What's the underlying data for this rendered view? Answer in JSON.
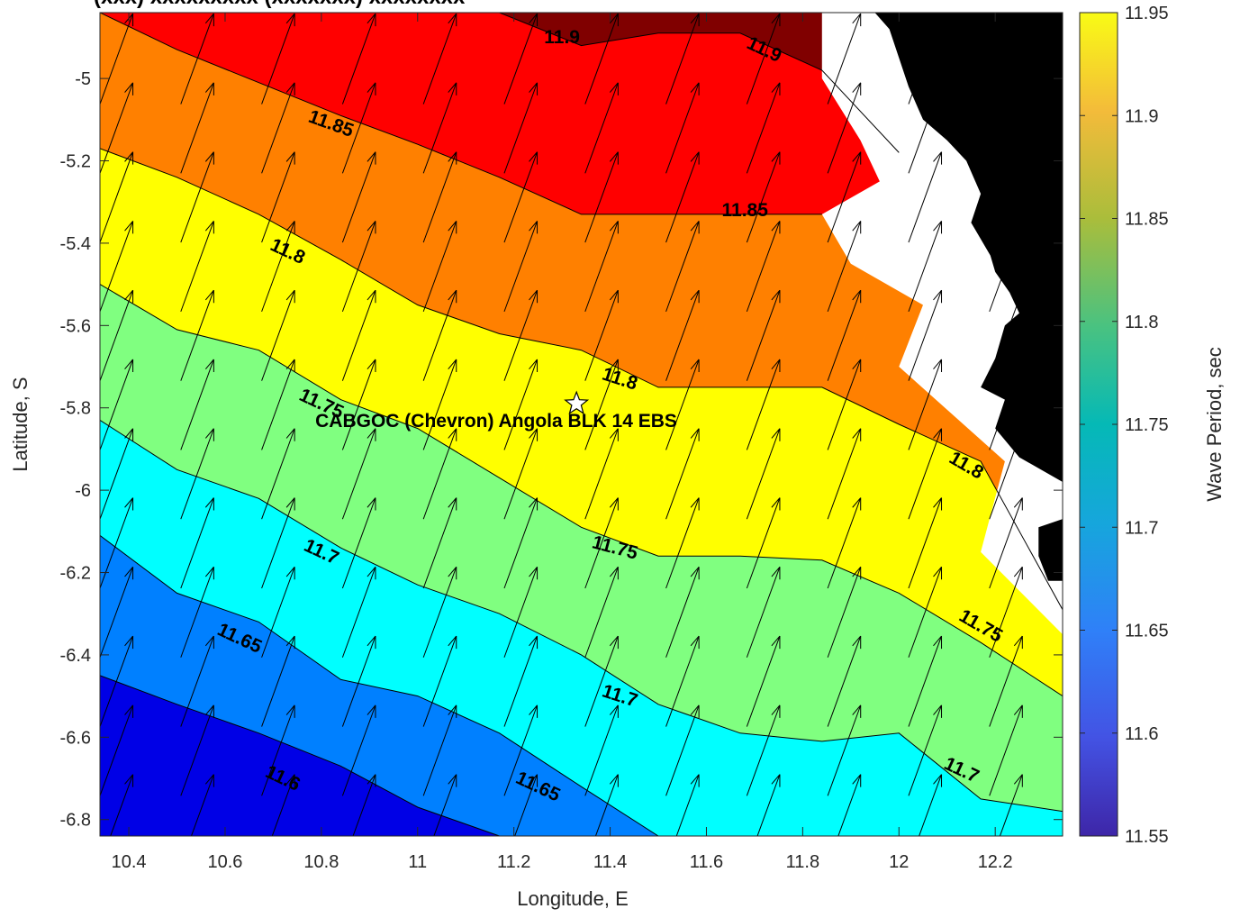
{
  "chart_data": {
    "type": "contour",
    "title": "(xxx) xxxxxxxxx (xxxxxxx) xxxxxxxx",
    "xlabel": "Longitude, E",
    "ylabel": "Latitude, S",
    "xlim": [
      10.34,
      12.34
    ],
    "ylim": [
      -6.84,
      -4.84
    ],
    "x_ticks": [
      10.4,
      10.6,
      10.8,
      11,
      11.2,
      11.4,
      11.6,
      11.8,
      12,
      12.2
    ],
    "x_tick_labels": [
      "10.4",
      "10.6",
      "10.8",
      "11",
      "11.2",
      "11.4",
      "11.6",
      "11.8",
      "12",
      "12.2"
    ],
    "y_ticks": [
      -5,
      -5.2,
      -5.4,
      -5.6,
      -5.8,
      -6,
      -6.2,
      -6.4,
      -6.6,
      -6.8
    ],
    "y_tick_labels": [
      "-5",
      "-5.2",
      "-5.4",
      "-5.6",
      "-5.8",
      "-6",
      "-6.2",
      "-6.4",
      "-6.6",
      "-6.8"
    ],
    "colorbar": {
      "label": "Wave Period, sec",
      "range": [
        11.55,
        11.95
      ],
      "ticks": [
        11.55,
        11.6,
        11.65,
        11.7,
        11.75,
        11.8,
        11.85,
        11.9,
        11.95
      ],
      "tick_labels": [
        "11.55",
        "11.6",
        "11.65",
        "11.7",
        "11.75",
        "11.8",
        "11.85",
        "11.9",
        "11.95"
      ]
    },
    "contour_levels": [
      11.6,
      11.65,
      11.7,
      11.75,
      11.8,
      11.85,
      11.9
    ],
    "band_colors": [
      "#0000e6",
      "#0080ff",
      "#00ffff",
      "#80ff80",
      "#ffff00",
      "#ff8000",
      "#ff0000",
      "#800000"
    ],
    "contour_lines": [
      {
        "level": 11.6,
        "points": [
          [
            10.34,
            -6.45
          ],
          [
            10.5,
            -6.52
          ],
          [
            10.67,
            -6.59
          ],
          [
            10.84,
            -6.67
          ],
          [
            11.0,
            -6.77
          ],
          [
            11.17,
            -6.84
          ]
        ]
      },
      {
        "level": 11.65,
        "points": [
          [
            10.34,
            -6.11
          ],
          [
            10.5,
            -6.25
          ],
          [
            10.67,
            -6.32
          ],
          [
            10.84,
            -6.46
          ],
          [
            11.0,
            -6.5
          ],
          [
            11.17,
            -6.59
          ],
          [
            11.34,
            -6.72
          ],
          [
            11.5,
            -6.84
          ]
        ]
      },
      {
        "level": 11.7,
        "points": [
          [
            10.34,
            -5.83
          ],
          [
            10.5,
            -5.95
          ],
          [
            10.67,
            -6.02
          ],
          [
            10.84,
            -6.14
          ],
          [
            11.0,
            -6.23
          ],
          [
            11.17,
            -6.3
          ],
          [
            11.34,
            -6.4
          ],
          [
            11.5,
            -6.52
          ],
          [
            11.67,
            -6.59
          ],
          [
            11.84,
            -6.61
          ],
          [
            12.0,
            -6.59
          ],
          [
            12.17,
            -6.75
          ],
          [
            12.34,
            -6.78
          ]
        ]
      },
      {
        "level": 11.75,
        "points": [
          [
            10.34,
            -5.5
          ],
          [
            10.5,
            -5.61
          ],
          [
            10.67,
            -5.66
          ],
          [
            10.84,
            -5.78
          ],
          [
            11.0,
            -5.85
          ],
          [
            11.17,
            -5.97
          ],
          [
            11.34,
            -6.09
          ],
          [
            11.5,
            -6.16
          ],
          [
            11.67,
            -6.16
          ],
          [
            11.84,
            -6.17
          ],
          [
            12.0,
            -6.25
          ],
          [
            12.17,
            -6.37
          ],
          [
            12.34,
            -6.5
          ]
        ]
      },
      {
        "level": 11.8,
        "points": [
          [
            10.34,
            -5.17
          ],
          [
            10.5,
            -5.24
          ],
          [
            10.67,
            -5.33
          ],
          [
            10.84,
            -5.44
          ],
          [
            11.0,
            -5.55
          ],
          [
            11.17,
            -5.62
          ],
          [
            11.34,
            -5.66
          ],
          [
            11.5,
            -5.75
          ],
          [
            11.67,
            -5.75
          ],
          [
            11.84,
            -5.75
          ],
          [
            12.0,
            -5.84
          ],
          [
            12.17,
            -5.93
          ],
          [
            12.34,
            -6.29
          ]
        ]
      },
      {
        "level": 11.85,
        "points": [
          [
            10.34,
            -4.84
          ],
          [
            10.5,
            -4.93
          ],
          [
            10.67,
            -5.01
          ],
          [
            10.84,
            -5.09
          ],
          [
            11.0,
            -5.16
          ],
          [
            11.17,
            -5.24
          ],
          [
            11.34,
            -5.33
          ],
          [
            11.5,
            -5.33
          ],
          [
            11.67,
            -5.33
          ],
          [
            11.84,
            -5.33
          ]
        ]
      },
      {
        "level": 11.9,
        "points": [
          [
            11.17,
            -4.84
          ],
          [
            11.34,
            -4.92
          ],
          [
            11.5,
            -4.89
          ],
          [
            11.67,
            -4.89
          ],
          [
            11.84,
            -4.98
          ],
          [
            12.0,
            -5.18
          ]
        ]
      }
    ],
    "contour_labels": [
      {
        "text": "11.6",
        "x": 10.72,
        "y": -6.7,
        "angle": 25
      },
      {
        "text": "11.65",
        "x": 10.63,
        "y": -6.36,
        "angle": 25
      },
      {
        "text": "11.65",
        "x": 11.25,
        "y": -6.72,
        "angle": 25
      },
      {
        "text": "11.7",
        "x": 10.8,
        "y": -6.15,
        "angle": 25
      },
      {
        "text": "11.7",
        "x": 11.42,
        "y": -6.5,
        "angle": 18
      },
      {
        "text": "11.7",
        "x": 12.13,
        "y": -6.68,
        "angle": 25
      },
      {
        "text": "11.75",
        "x": 10.8,
        "y": -5.79,
        "angle": 25
      },
      {
        "text": "11.75",
        "x": 11.41,
        "y": -6.14,
        "angle": 15
      },
      {
        "text": "11.75",
        "x": 12.17,
        "y": -6.33,
        "angle": 30
      },
      {
        "text": "11.8",
        "x": 10.73,
        "y": -5.42,
        "angle": 25
      },
      {
        "text": "11.8",
        "x": 11.42,
        "y": -5.73,
        "angle": 18
      },
      {
        "text": "11.8",
        "x": 12.14,
        "y": -5.94,
        "angle": 30
      },
      {
        "text": "11.85",
        "x": 10.82,
        "y": -5.11,
        "angle": 20
      },
      {
        "text": "11.85",
        "x": 11.68,
        "y": -5.32,
        "angle": 0
      },
      {
        "text": "11.9",
        "x": 11.3,
        "y": -4.9,
        "angle": 0
      },
      {
        "text": "11.9",
        "x": 11.72,
        "y": -4.93,
        "angle": 25
      }
    ],
    "site": {
      "name": "CABGOC (Chevron)  Angola BLK 14  EBS",
      "lon": 11.33,
      "lat": -5.79,
      "marker": "star"
    },
    "vector_field": {
      "x_start": 10.34,
      "x_step": 0.168,
      "y_start": -4.84,
      "y_step": -0.168,
      "direction_deg": 20,
      "length_units": 0.2
    }
  }
}
